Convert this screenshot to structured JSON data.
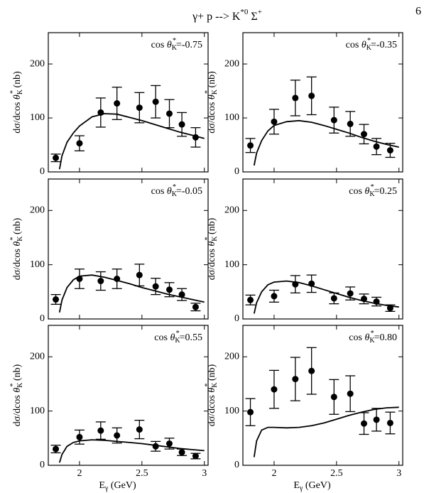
{
  "title": [
    "γ+ p --> K",
    "*0",
    " Σ",
    "+"
  ],
  "page_number": "6",
  "chart_data": [
    {
      "type": "errorbar",
      "annotation": [
        "cos ",
        "θ",
        "K",
        "*",
        "=-0.75"
      ],
      "ylabel": [
        "dσ/dcos ",
        "θ",
        "K",
        "*",
        " (nb)"
      ],
      "xlim": [
        1.75,
        3.03
      ],
      "xticks": [
        2.0,
        2.5,
        3.0
      ],
      "ylim": [
        0,
        258
      ],
      "yticks": [
        0,
        100,
        200
      ],
      "x": [
        1.81,
        2.0,
        2.17,
        2.3,
        2.48,
        2.61,
        2.72,
        2.82,
        2.93
      ],
      "values": [
        26,
        53,
        110,
        127,
        119,
        130,
        108,
        88,
        64
      ],
      "errors": [
        7,
        14,
        27,
        30,
        28,
        30,
        26,
        22,
        18
      ],
      "curve": {
        "x": [
          1.84,
          1.86,
          1.9,
          1.95,
          2.0,
          2.1,
          2.2,
          2.3,
          2.4,
          2.5,
          2.6,
          2.7,
          2.8,
          2.9,
          3.0
        ],
        "values": [
          5,
          30,
          55,
          72,
          85,
          102,
          108,
          107,
          101,
          95,
          88,
          81,
          74,
          68,
          62
        ]
      }
    },
    {
      "type": "errorbar",
      "annotation": [
        "cos ",
        "θ",
        "K",
        "*",
        "=-0.35"
      ],
      "ylabel": [
        "dσ/dcos ",
        "θ",
        "K",
        "*",
        " (nb)"
      ],
      "xlim": [
        1.75,
        3.03
      ],
      "xticks": [
        2.0,
        2.5,
        3.0
      ],
      "ylim": [
        0,
        258
      ],
      "yticks": [
        0,
        100,
        200
      ],
      "x": [
        1.81,
        2.0,
        2.17,
        2.3,
        2.48,
        2.61,
        2.72,
        2.82,
        2.93
      ],
      "values": [
        49,
        93,
        137,
        141,
        96,
        89,
        70,
        47,
        40
      ],
      "errors": [
        13,
        23,
        33,
        35,
        24,
        23,
        18,
        15,
        13
      ],
      "curve": {
        "x": [
          1.84,
          1.86,
          1.9,
          1.95,
          2.0,
          2.1,
          2.2,
          2.3,
          2.4,
          2.5,
          2.6,
          2.7,
          2.8,
          2.9,
          3.0
        ],
        "values": [
          12,
          35,
          58,
          76,
          86,
          93,
          95,
          92,
          86,
          79,
          72,
          64,
          57,
          51,
          46
        ]
      }
    },
    {
      "type": "errorbar",
      "annotation": [
        "cos ",
        "θ",
        "K",
        "*",
        "=-0.05"
      ],
      "ylabel": [
        "dσ/dcos ",
        "θ",
        "K",
        "*",
        " (nb)"
      ],
      "xlim": [
        1.75,
        3.03
      ],
      "xticks": [
        2.0,
        2.5,
        3.0
      ],
      "ylim": [
        0,
        258
      ],
      "yticks": [
        0,
        100,
        200
      ],
      "x": [
        1.81,
        2.0,
        2.17,
        2.3,
        2.48,
        2.61,
        2.72,
        2.82,
        2.93
      ],
      "values": [
        36,
        74,
        70,
        74,
        81,
        60,
        54,
        45,
        22
      ],
      "errors": [
        9,
        18,
        17,
        18,
        20,
        15,
        13,
        11,
        7
      ],
      "curve": {
        "x": [
          1.84,
          1.86,
          1.9,
          1.95,
          2.0,
          2.1,
          2.2,
          2.3,
          2.4,
          2.5,
          2.6,
          2.7,
          2.8,
          2.9,
          3.0
        ],
        "values": [
          12,
          35,
          58,
          72,
          79,
          81,
          77,
          71,
          65,
          58,
          52,
          46,
          41,
          36,
          31
        ]
      }
    },
    {
      "type": "errorbar",
      "annotation": [
        "cos ",
        "θ",
        "K",
        "*",
        "=0.25"
      ],
      "ylabel": [
        "dσ/dcos ",
        "θ",
        "K",
        "*",
        " (nb)"
      ],
      "xlim": [
        1.75,
        3.03
      ],
      "xticks": [
        2.0,
        2.5,
        3.0
      ],
      "ylim": [
        0,
        258
      ],
      "yticks": [
        0,
        100,
        200
      ],
      "x": [
        1.81,
        2.0,
        2.17,
        2.3,
        2.48,
        2.61,
        2.72,
        2.82,
        2.93
      ],
      "values": [
        35,
        42,
        64,
        65,
        38,
        47,
        37,
        32,
        20
      ],
      "errors": [
        9,
        11,
        16,
        16,
        10,
        12,
        9,
        8,
        6
      ],
      "curve": {
        "x": [
          1.84,
          1.86,
          1.9,
          1.95,
          2.0,
          2.1,
          2.2,
          2.3,
          2.4,
          2.5,
          2.6,
          2.7,
          2.8,
          2.9,
          3.0
        ],
        "values": [
          10,
          30,
          50,
          63,
          68,
          70,
          67,
          61,
          54,
          47,
          40,
          34,
          29,
          25,
          22
        ]
      }
    },
    {
      "type": "errorbar",
      "annotation": [
        "cos ",
        "θ",
        "K",
        "*",
        "=0.55"
      ],
      "ylabel": [
        "dσ/dcos ",
        "θ",
        "K",
        "*",
        " (nb)"
      ],
      "xlabel": [
        "E",
        "γ",
        " (GeV)"
      ],
      "xlim": [
        1.75,
        3.03
      ],
      "xticks": [
        2.0,
        2.5,
        3.0
      ],
      "ylim": [
        0,
        258
      ],
      "yticks": [
        0,
        100,
        200
      ],
      "x": [
        1.81,
        2.0,
        2.17,
        2.3,
        2.48,
        2.61,
        2.72,
        2.82,
        2.93
      ],
      "values": [
        30,
        52,
        64,
        55,
        66,
        35,
        40,
        24,
        17
      ],
      "errors": [
        7,
        13,
        16,
        14,
        17,
        9,
        10,
        6,
        5
      ],
      "curve": {
        "x": [
          1.84,
          1.86,
          1.9,
          1.95,
          2.0,
          2.1,
          2.2,
          2.3,
          2.4,
          2.5,
          2.6,
          2.7,
          2.8,
          2.9,
          3.0
        ],
        "values": [
          5,
          20,
          35,
          42,
          45,
          47,
          46,
          44,
          42,
          40,
          37,
          34,
          31,
          29,
          27
        ]
      }
    },
    {
      "type": "errorbar",
      "annotation": [
        "cos ",
        "θ",
        "K",
        "*",
        "=0.80"
      ],
      "ylabel": [
        "dσ/dcos ",
        "θ",
        "K",
        "*",
        " (nb)"
      ],
      "xlabel": [
        "E",
        "γ",
        " (GeV)"
      ],
      "xlim": [
        1.75,
        3.03
      ],
      "xticks": [
        2.0,
        2.5,
        3.0
      ],
      "ylim": [
        0,
        258
      ],
      "yticks": [
        0,
        100,
        200
      ],
      "x": [
        1.81,
        2.0,
        2.17,
        2.3,
        2.48,
        2.61,
        2.72,
        2.82,
        2.93
      ],
      "values": [
        98,
        140,
        159,
        174,
        126,
        132,
        77,
        84,
        78
      ],
      "errors": [
        25,
        35,
        40,
        43,
        32,
        33,
        20,
        21,
        20
      ],
      "curve": {
        "x": [
          1.84,
          1.86,
          1.9,
          1.95,
          2.0,
          2.1,
          2.2,
          2.3,
          2.4,
          2.5,
          2.6,
          2.7,
          2.8,
          2.9,
          3.0
        ],
        "values": [
          15,
          45,
          65,
          70,
          70,
          69,
          70,
          73,
          78,
          85,
          92,
          98,
          103,
          106,
          107
        ]
      }
    }
  ]
}
